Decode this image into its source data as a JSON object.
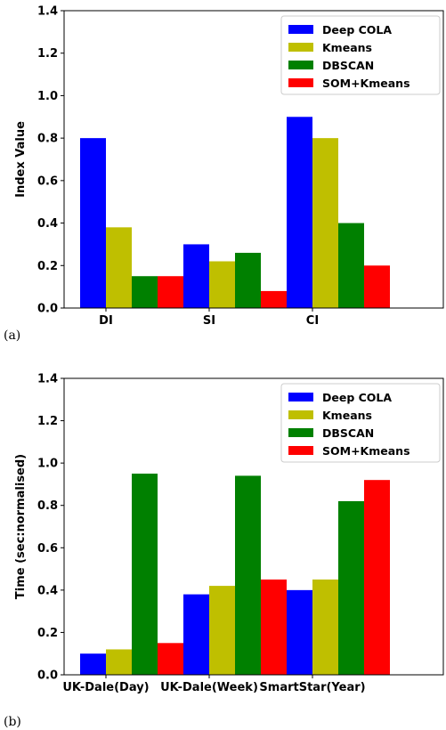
{
  "chart_data": [
    {
      "type": "bar",
      "panel_label": "(a)",
      "categories": [
        "DI",
        "SI",
        "CI"
      ],
      "ylabel": "Index Value",
      "xlabel": "",
      "ylim": [
        0,
        1.4
      ],
      "yticks": [
        "0.0",
        "0.2",
        "0.4",
        "0.6",
        "0.8",
        "1.0",
        "1.2",
        "1.4"
      ],
      "legend_position": "top-right",
      "grid": false,
      "series": [
        {
          "name": "Deep COLA",
          "color": "#0000ff",
          "values": [
            0.8,
            0.3,
            0.9
          ]
        },
        {
          "name": "Kmeans",
          "color": "#bfbf00",
          "values": [
            0.38,
            0.22,
            0.8
          ]
        },
        {
          "name": "DBSCAN",
          "color": "#008000",
          "values": [
            0.15,
            0.26,
            0.4
          ]
        },
        {
          "name": "SOM+Kmeans",
          "color": "#ff0000",
          "values": [
            0.15,
            0.08,
            0.2
          ]
        }
      ]
    },
    {
      "type": "bar",
      "panel_label": "(b)",
      "categories": [
        "UK-Dale(Day)",
        "UK-Dale(Week)",
        "SmartStar(Year)"
      ],
      "ylabel": "Time (sec:normalised)",
      "xlabel": "",
      "ylim": [
        0,
        1.4
      ],
      "yticks": [
        "0.0",
        "0.2",
        "0.4",
        "0.6",
        "0.8",
        "1.0",
        "1.2",
        "1.4"
      ],
      "legend_position": "top-right",
      "grid": false,
      "series": [
        {
          "name": "Deep COLA",
          "color": "#0000ff",
          "values": [
            0.1,
            0.38,
            0.4
          ]
        },
        {
          "name": "Kmeans",
          "color": "#bfbf00",
          "values": [
            0.12,
            0.42,
            0.45
          ]
        },
        {
          "name": "DBSCAN",
          "color": "#008000",
          "values": [
            0.95,
            0.94,
            0.82
          ]
        },
        {
          "name": "SOM+Kmeans",
          "color": "#ff0000",
          "values": [
            0.15,
            0.45,
            0.92
          ]
        }
      ]
    }
  ]
}
